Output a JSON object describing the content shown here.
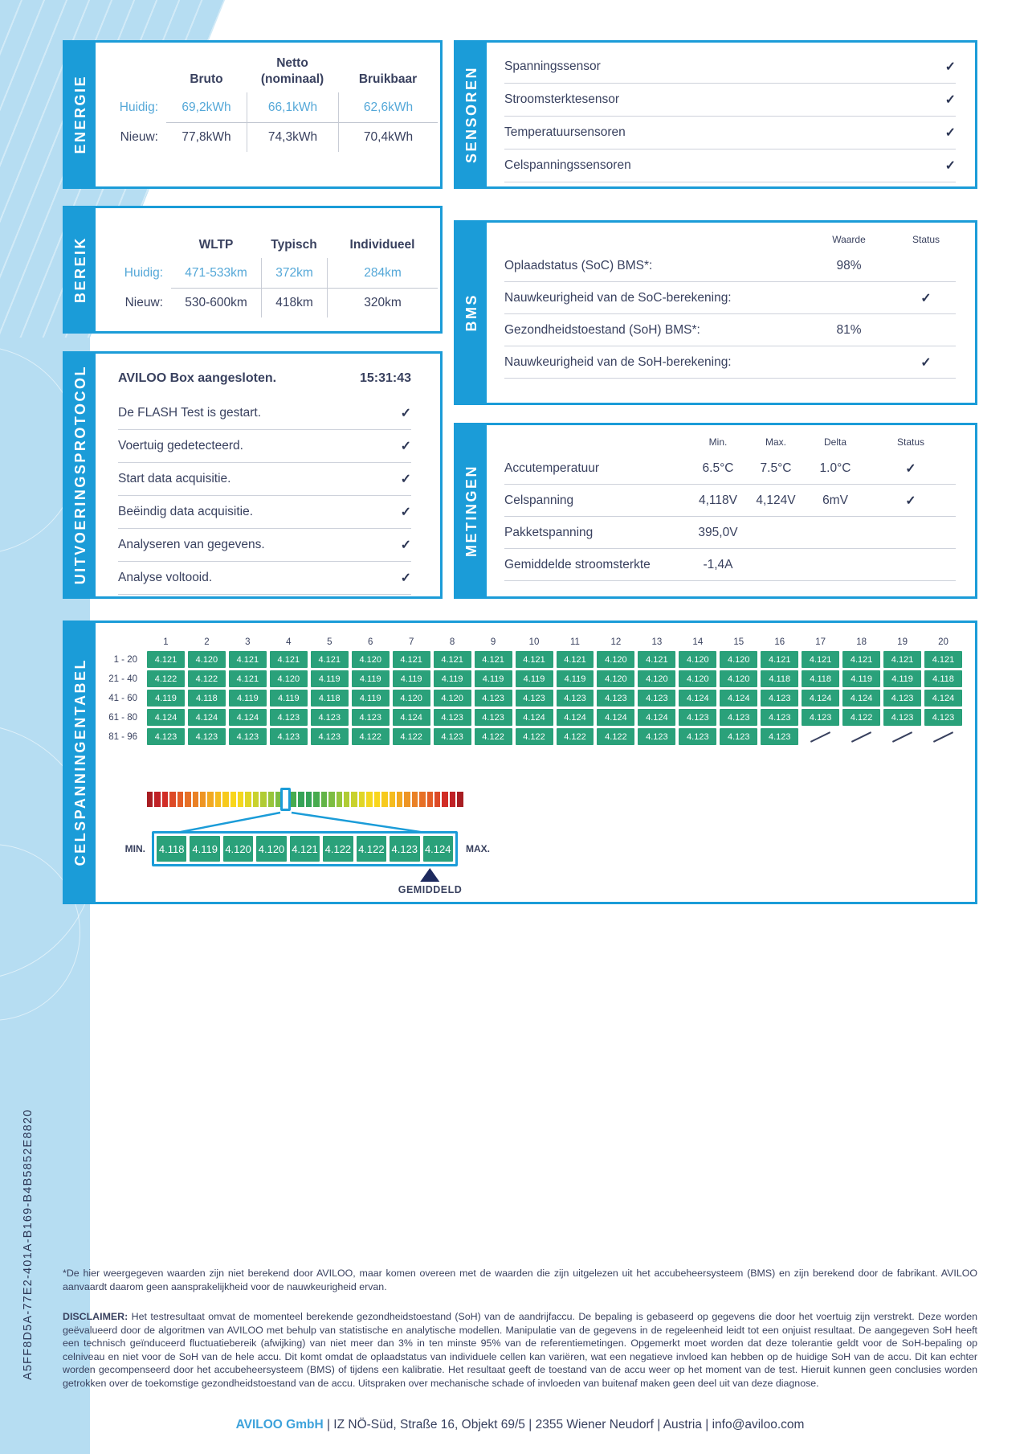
{
  "document_id": "A5FF8D5A-77E2-401A-B169-B4B5852E8820",
  "check": "✓",
  "colors": {
    "blue": "#1b9cd8",
    "navy": "#39415f",
    "light_blue_text": "#55a8d8",
    "green_cell": "#2aa17a",
    "band_light_blue": "#b6ddf2"
  },
  "energie": {
    "tab": "ENERGIE",
    "headers": [
      "Bruto",
      "Netto\n(nominaal)",
      "Bruikbaar"
    ],
    "rows": [
      {
        "label": "Huidig:",
        "values": [
          "69,2kWh",
          "66,1kWh",
          "62,6kWh"
        ],
        "highlight": true
      },
      {
        "label": "Nieuw:",
        "values": [
          "77,8kWh",
          "74,3kWh",
          "70,4kWh"
        ],
        "highlight": false
      }
    ]
  },
  "sensoren": {
    "tab": "SENSOREN",
    "items": [
      "Spanningssensor",
      "Stroomsterktesensor",
      "Temperatuursensoren",
      "Celspanningssensoren"
    ]
  },
  "bereik": {
    "tab": "BEREIK",
    "headers": [
      "WLTP",
      "Typisch",
      "Individueel"
    ],
    "rows": [
      {
        "label": "Huidig:",
        "values": [
          "471-533km",
          "372km",
          "284km"
        ],
        "highlight": true
      },
      {
        "label": "Nieuw:",
        "values": [
          "530-600km",
          "418km",
          "320km"
        ],
        "highlight": false
      }
    ]
  },
  "bms": {
    "tab": "BMS",
    "headers": [
      "Waarde",
      "Status"
    ],
    "rows": [
      {
        "label": "Oplaadstatus (SoC) BMS*:",
        "waarde": "98%",
        "check": false
      },
      {
        "label": "Nauwkeurigheid van de SoC-berekening:",
        "waarde": "",
        "check": true
      },
      {
        "label": "Gezondheidstoestand (SoH) BMS*:",
        "waarde": "81%",
        "check": false
      },
      {
        "label": "Nauwkeurigheid van de SoH-berekening:",
        "waarde": "",
        "check": true
      }
    ]
  },
  "protocol": {
    "tab": "UITVOERINGSPROTOCOL",
    "first_row": {
      "label": "AVILOO Box aangesloten.",
      "time": "15:31:43"
    },
    "items": [
      "De FLASH Test is gestart.",
      "Voertuig gedetecteerd.",
      "Start data acquisitie.",
      "Beëindig data acquisitie.",
      "Analyseren van gegevens.",
      "Analyse voltooid."
    ]
  },
  "metingen": {
    "tab": "METINGEN",
    "headers": [
      "Min.",
      "Max.",
      "Delta",
      "Status"
    ],
    "rows": [
      {
        "label": "Accutemperatuur",
        "min": "6.5°C",
        "max": "7.5°C",
        "delta": "1.0°C",
        "check": true
      },
      {
        "label": "Celspanning",
        "min": "4,118V",
        "max": "4,124V",
        "delta": "6mV",
        "check": true
      },
      {
        "label": "Pakketspanning",
        "min": "395,0V",
        "max": "",
        "delta": "",
        "check": false
      },
      {
        "label": "Gemiddelde stroomsterkte",
        "min": "-1,4A",
        "max": "",
        "delta": "",
        "check": false
      }
    ]
  },
  "celtabel": {
    "tab": "CELSPANNINGENTABEL",
    "col_numbers": [
      "1",
      "2",
      "3",
      "4",
      "5",
      "6",
      "7",
      "8",
      "9",
      "10",
      "11",
      "12",
      "13",
      "14",
      "15",
      "16",
      "17",
      "18",
      "19",
      "20"
    ],
    "rows": [
      {
        "label": "1 - 20",
        "values": [
          "4.121",
          "4.120",
          "4.121",
          "4.121",
          "4.121",
          "4.120",
          "4.121",
          "4.121",
          "4.121",
          "4.121",
          "4.121",
          "4.120",
          "4.121",
          "4.120",
          "4.120",
          "4.121",
          "4.121",
          "4.121",
          "4.121",
          "4.121"
        ]
      },
      {
        "label": "21 - 40",
        "values": [
          "4.122",
          "4.122",
          "4.121",
          "4.120",
          "4.119",
          "4.119",
          "4.119",
          "4.119",
          "4.119",
          "4.119",
          "4.119",
          "4.120",
          "4.120",
          "4.120",
          "4.120",
          "4.118",
          "4.118",
          "4.119",
          "4.119",
          "4.118"
        ]
      },
      {
        "label": "41 - 60",
        "values": [
          "4.119",
          "4.118",
          "4.119",
          "4.119",
          "4.118",
          "4.119",
          "4.120",
          "4.120",
          "4.123",
          "4.123",
          "4.123",
          "4.123",
          "4.123",
          "4.124",
          "4.124",
          "4.123",
          "4.124",
          "4.124",
          "4.123",
          "4.124"
        ]
      },
      {
        "label": "61 - 80",
        "values": [
          "4.124",
          "4.124",
          "4.124",
          "4.123",
          "4.123",
          "4.123",
          "4.124",
          "4.123",
          "4.123",
          "4.124",
          "4.124",
          "4.124",
          "4.124",
          "4.123",
          "4.123",
          "4.123",
          "4.123",
          "4.122",
          "4.123",
          "4.123"
        ]
      },
      {
        "label": "81 - 96",
        "values": [
          "4.123",
          "4.123",
          "4.123",
          "4.123",
          "4.123",
          "4.122",
          "4.122",
          "4.123",
          "4.122",
          "4.122",
          "4.122",
          "4.122",
          "4.123",
          "4.123",
          "4.123",
          "4.123",
          null,
          null,
          null,
          null
        ]
      }
    ],
    "gradient_colors": [
      "#a81d22",
      "#c02126",
      "#d12d26",
      "#dd4a26",
      "#e35d25",
      "#e77026",
      "#ea8125",
      "#ee9523",
      "#f2a921",
      "#f5bc1f",
      "#f7ca1d",
      "#f9d61c",
      "#f4d71f",
      "#e0d626",
      "#c9d22d",
      "#b0cc34",
      "#97c53a",
      "#7dbd41",
      "#63b447",
      "#47ab4e",
      "#35a356",
      "#35a356",
      "#47ab4e",
      "#63b447",
      "#7dbd41",
      "#97c53a",
      "#b0cc34",
      "#c9d22d",
      "#e0d626",
      "#f4d71f",
      "#f9d61c",
      "#f7ca1d",
      "#f5bc1f",
      "#f2a921",
      "#ee9523",
      "#ea8125",
      "#e77026",
      "#e35d25",
      "#dd4a26",
      "#d12d26",
      "#c02126",
      "#a81d22"
    ],
    "highlight_index": 18,
    "legend": {
      "min_label": "MIN.",
      "max_label": "MAX.",
      "values": [
        "4.118",
        "4.119",
        "4.120",
        "4.120",
        "4.121",
        "4.122",
        "4.122",
        "4.123",
        "4.124"
      ],
      "avg_label": "GEMIDDELD",
      "avg_cell_index": 6
    }
  },
  "footnotes": {
    "note": "*De hier weergegeven waarden zijn niet berekend door AVILOO, maar komen overeen met de waarden die zijn uitgelezen uit het accubeheersysteem (BMS) en zijn berekend door de fabrikant. AVILOO aanvaardt daarom geen aansprakelijkheid voor de nauwkeurigheid ervan.",
    "disclaimer_label": "DISCLAIMER:",
    "disclaimer": " Het testresultaat omvat de momenteel berekende gezondheidstoestand (SoH) van de aandrijfaccu. De bepaling is gebaseerd op gegevens die door het voertuig zijn verstrekt. Deze worden geëvalueerd door de algoritmen van AVILOO met behulp van statistische en analytische modellen. Manipulatie van de gegevens in de regeleenheid leidt tot een onjuist resultaat. De aangegeven SoH heeft een technisch geïnduceerd fluctuatiebereik (afwijking) van niet meer dan 3% in ten minste 95% van de referentiemetingen. Opgemerkt moet worden dat deze tolerantie geldt voor de SoH-bepaling op celniveau en niet voor de SoH van de hele accu. Dit komt omdat de oplaadstatus van individuele cellen kan variëren, wat een negatieve invloed kan hebben op de huidige SoH van de accu. Dit kan echter worden gecompenseerd door het accubeheersysteem (BMS) of tijdens een kalibratie. Het resultaat geeft de toestand van de accu weer op het moment van de test. Hieruit kunnen geen conclusies worden getrokken over de toekomstige gezondheidstoestand van de accu. Uitspraken over mechanische schade of invloeden van buitenaf maken geen deel uit van deze diagnose."
  },
  "footer": {
    "company": "AVILOO GmbH",
    "separator": "|",
    "parts": [
      "IZ NÖ-Süd, Straße 16, Objekt 69/5",
      "2355 Wiener Neudorf",
      "Austria",
      "info@aviloo.com"
    ]
  }
}
